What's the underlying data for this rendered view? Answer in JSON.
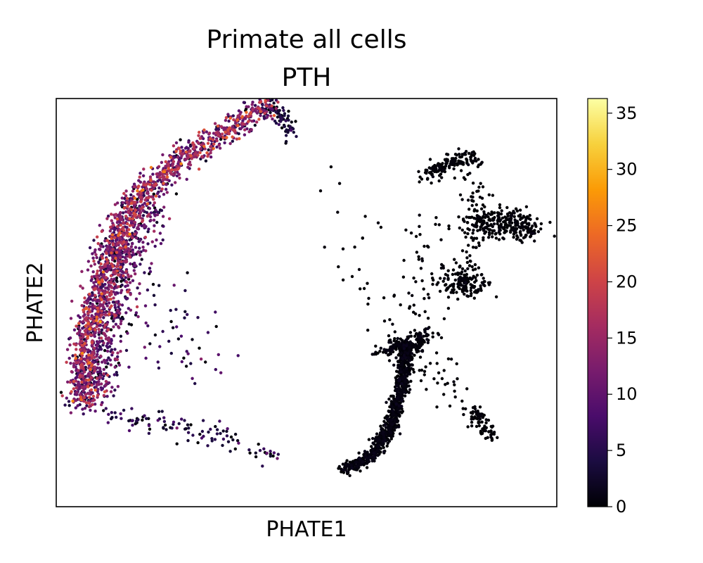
{
  "chart_data": {
    "type": "scatter",
    "title": "Primate all cells",
    "subtitle": "PTH",
    "xlabel": "PHATE1",
    "ylabel": "PHATE2",
    "x_ticks_shown": false,
    "y_ticks_shown": false,
    "grid": false,
    "colormap": "inferno",
    "colorbar": {
      "range": [
        0,
        36.3
      ],
      "ticks": [
        0,
        5,
        10,
        15,
        20,
        25,
        30,
        35
      ],
      "tick_labels": [
        "0",
        "5",
        "10",
        "15",
        "20",
        "25",
        "30",
        "35"
      ]
    },
    "colorbar_stops": [
      "#000004",
      "#1b0c41",
      "#4a0c6b",
      "#781c6d",
      "#a52c60",
      "#cf4446",
      "#ed6925",
      "#fb9b06",
      "#f7d13d",
      "#fcffa4"
    ],
    "series": [
      {
        "branches": [
          {
            "points": [
              [
                -0.9,
                -0.5
              ],
              [
                -0.88,
                -0.2
              ],
              [
                -0.8,
                0.2
              ],
              [
                -0.68,
                0.52
              ],
              [
                -0.5,
                0.7
              ],
              [
                -0.3,
                0.85
              ],
              [
                -0.15,
                0.98
              ]
            ],
            "count": 1400,
            "spread": 0.03,
            "value_mean": 12,
            "value_sd": 6
          },
          {
            "points": [
              [
                -0.85,
                -0.45
              ],
              [
                -0.8,
                -0.1
              ],
              [
                -0.72,
                0.28
              ],
              [
                -0.62,
                0.5
              ]
            ],
            "count": 700,
            "spread": 0.045,
            "value_mean": 9,
            "value_sd": 5
          },
          {
            "points": [
              [
                -0.8,
                -0.55
              ],
              [
                -0.6,
                -0.58
              ],
              [
                -0.45,
                -0.62
              ],
              [
                -0.3,
                -0.68
              ],
              [
                -0.12,
                -0.76
              ]
            ],
            "count": 110,
            "spread": 0.03,
            "value_mean": 4,
            "value_sd": 3
          },
          {
            "points": [
              [
                -0.15,
                0.98
              ],
              [
                -0.1,
                0.9
              ],
              [
                -0.05,
                0.82
              ]
            ],
            "count": 80,
            "spread": 0.02,
            "value_mean": 3,
            "value_sd": 2
          },
          {
            "points": [
              [
                -0.72,
                0.3
              ],
              [
                -0.6,
                0.0
              ],
              [
                -0.5,
                -0.2
              ],
              [
                -0.4,
                -0.3
              ]
            ],
            "count": 70,
            "spread": 0.08,
            "value_mean": 6,
            "value_sd": 4
          }
        ]
      },
      {
        "branches": [
          {
            "points": [
              [
                0.15,
                -0.82
              ],
              [
                0.26,
                -0.75
              ],
              [
                0.34,
                -0.6
              ],
              [
                0.38,
                -0.4
              ],
              [
                0.4,
                -0.2
              ]
            ],
            "count": 900,
            "spread": 0.015,
            "value_mean": 0.3,
            "value_sd": 0.5
          },
          {
            "points": [
              [
                0.3,
                -0.25
              ],
              [
                0.36,
                -0.2
              ],
              [
                0.42,
                -0.22
              ],
              [
                0.48,
                -0.15
              ]
            ],
            "count": 150,
            "spread": 0.02,
            "value_mean": 0.3,
            "value_sd": 0.5
          },
          {
            "points": [
              [
                0.48,
                0.62
              ],
              [
                0.55,
                0.68
              ],
              [
                0.68,
                0.72
              ]
            ],
            "count": 140,
            "spread": 0.02,
            "value_mean": 0.2,
            "value_sd": 0.3
          },
          {
            "points": [
              [
                0.7,
                0.38
              ],
              [
                0.8,
                0.4
              ],
              [
                0.9,
                0.35
              ]
            ],
            "count": 250,
            "spread": 0.035,
            "value_mean": 0.2,
            "value_sd": 0.3
          },
          {
            "points": [
              [
                0.58,
                0.15
              ],
              [
                0.62,
                0.08
              ],
              [
                0.7,
                0.1
              ]
            ],
            "count": 140,
            "spread": 0.035,
            "value_mean": 0.2,
            "value_sd": 0.3
          },
          {
            "points": [
              [
                0.66,
                -0.5
              ],
              [
                0.7,
                -0.6
              ],
              [
                0.74,
                -0.66
              ]
            ],
            "count": 80,
            "spread": 0.015,
            "value_mean": 0.2,
            "value_sd": 0.3
          },
          {
            "points": [
              [
                0.4,
                -0.2
              ],
              [
                0.45,
                -0.05
              ],
              [
                0.5,
                0.12
              ],
              [
                0.52,
                0.28
              ],
              [
                0.5,
                0.42
              ]
            ],
            "count": 60,
            "spread": 0.06,
            "value_mean": 0.2,
            "value_sd": 0.3
          },
          {
            "points": [
              [
                0.45,
                -0.2
              ],
              [
                0.5,
                -0.35
              ],
              [
                0.58,
                -0.45
              ]
            ],
            "count": 40,
            "spread": 0.05,
            "value_mean": 0.2,
            "value_sd": 0.3
          },
          {
            "points": [
              [
                0.1,
                0.55
              ],
              [
                0.2,
                0.35
              ],
              [
                0.3,
                0.1
              ],
              [
                0.35,
                -0.1
              ]
            ],
            "count": 30,
            "spread": 0.08,
            "value_mean": 0.2,
            "value_sd": 0.3
          },
          {
            "points": [
              [
                0.66,
                0.62
              ],
              [
                0.68,
                0.4
              ],
              [
                0.66,
                0.2
              ]
            ],
            "count": 80,
            "spread": 0.03,
            "value_mean": 0.2,
            "value_sd": 0.3
          }
        ]
      }
    ],
    "extent": {
      "x": [
        -1,
        1
      ],
      "y": [
        -1,
        1
      ]
    }
  }
}
